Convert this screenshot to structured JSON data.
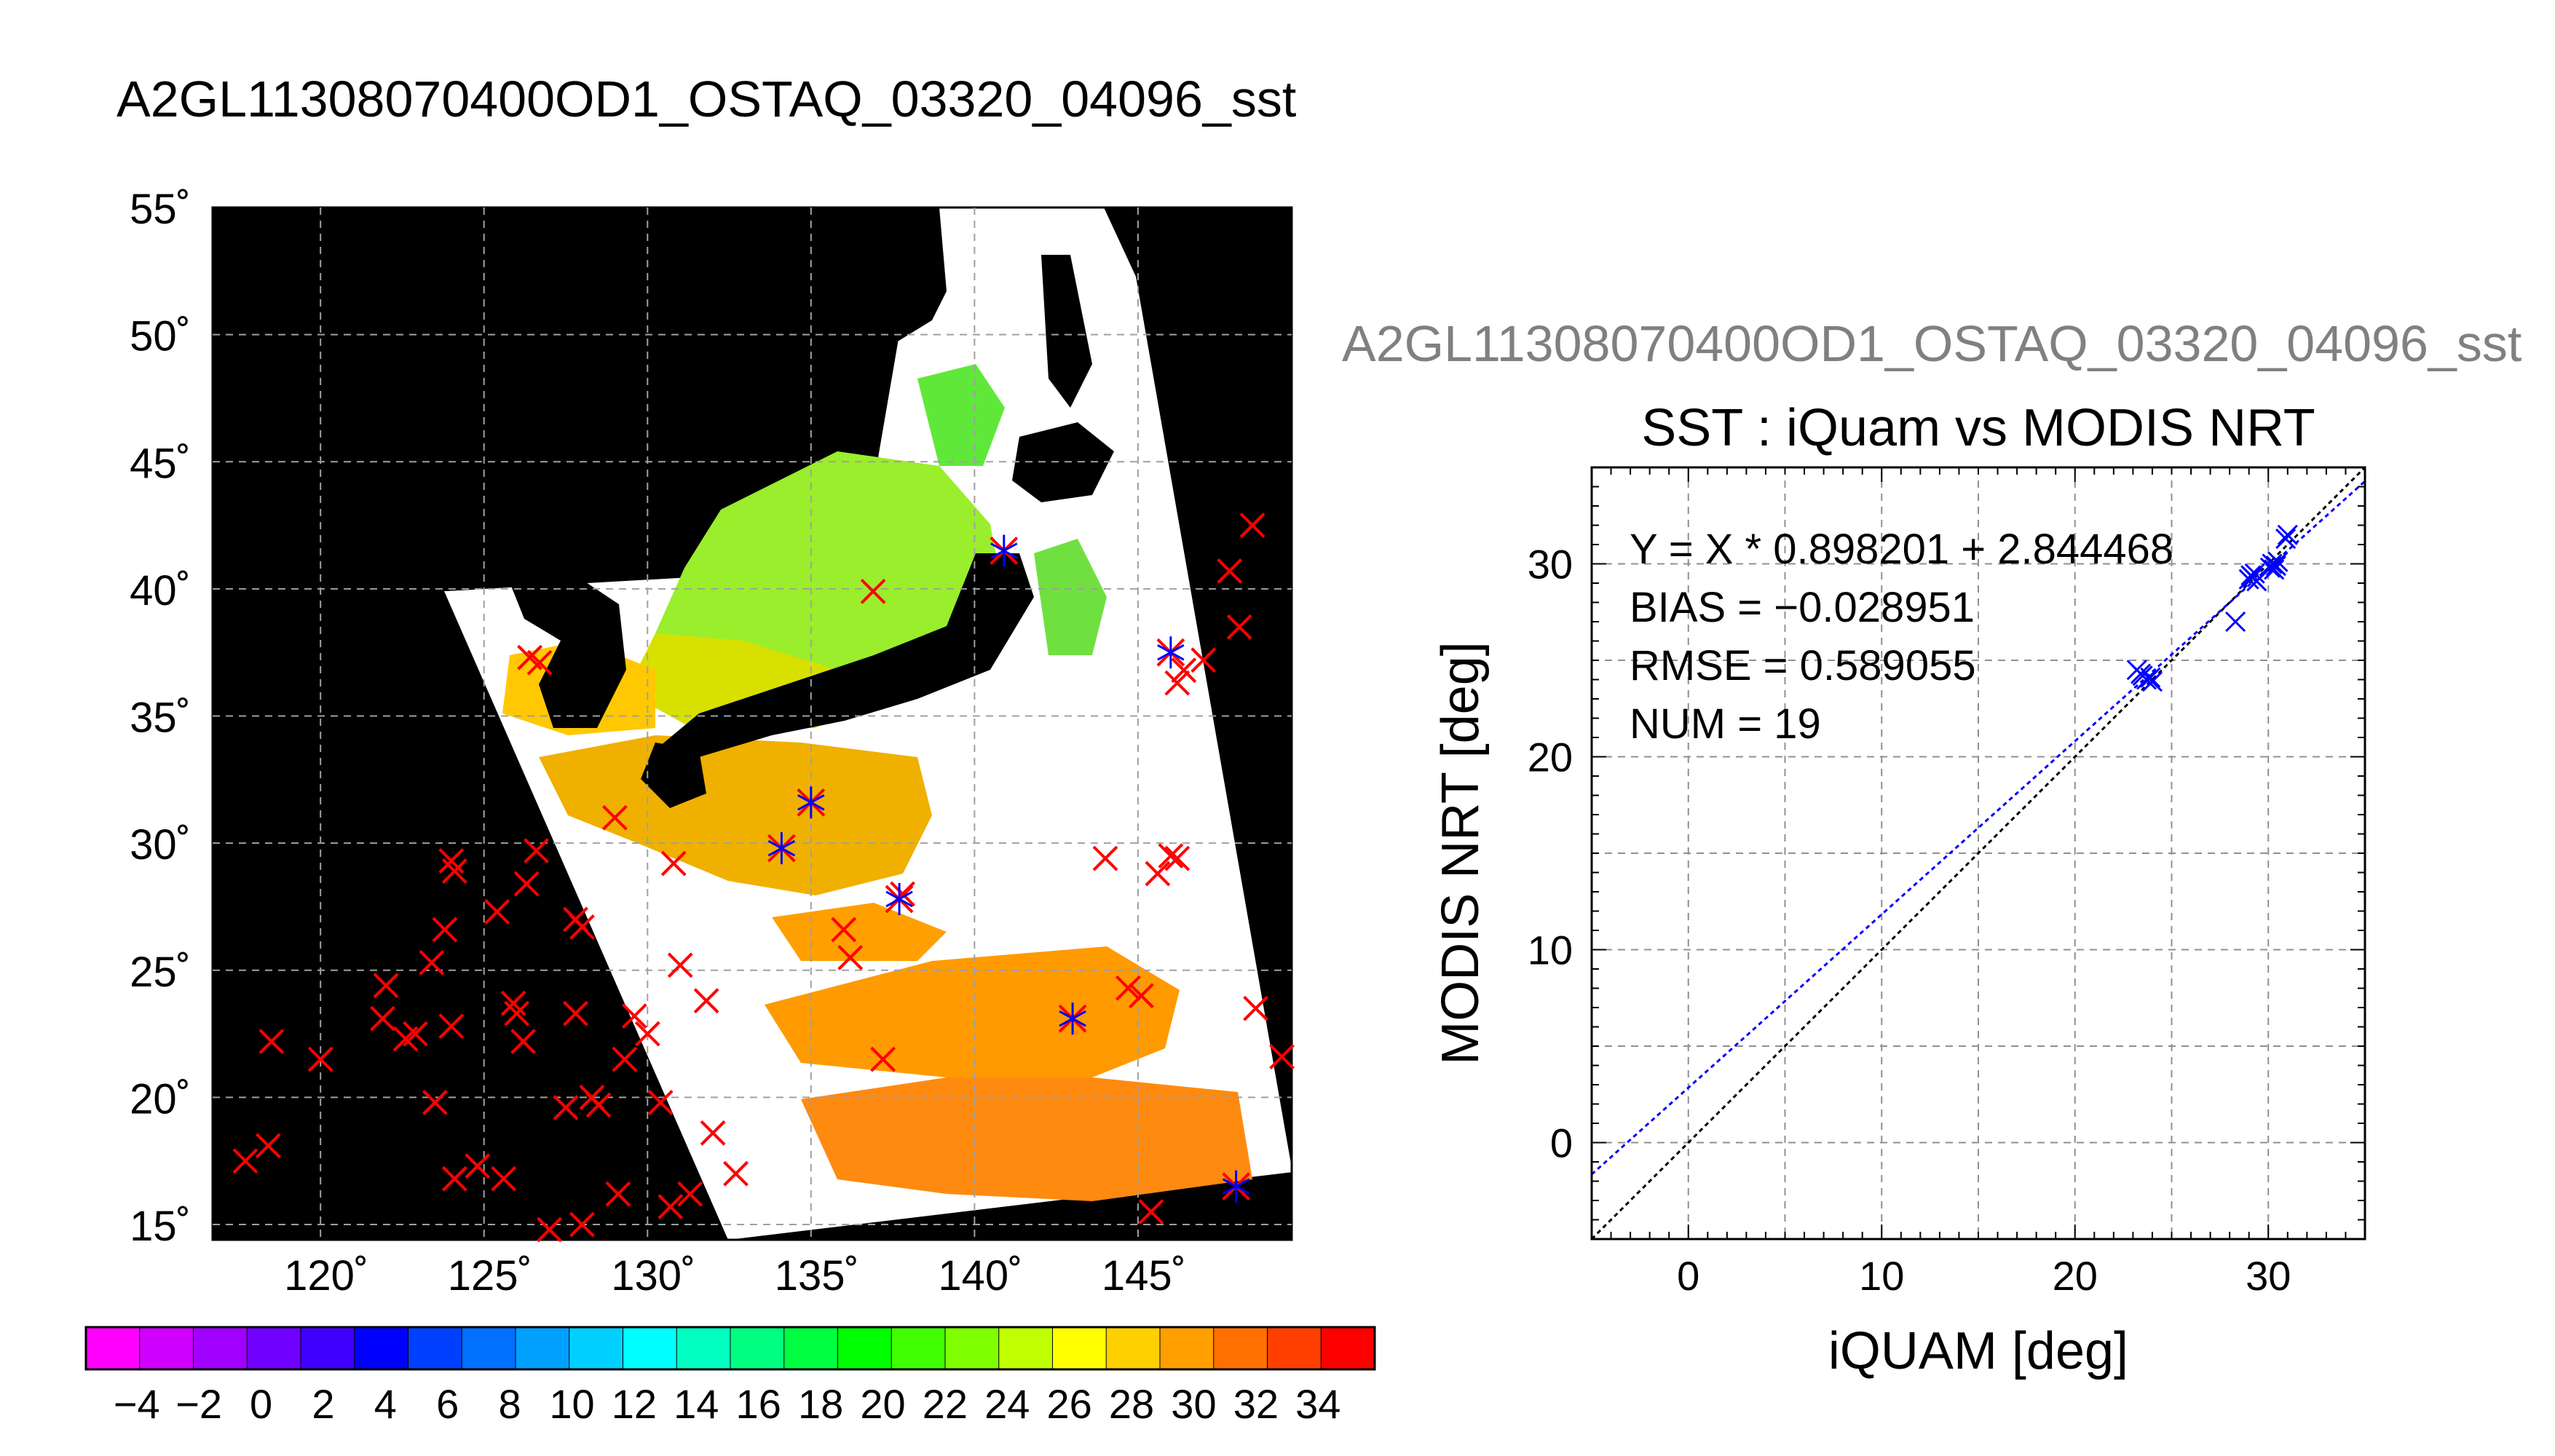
{
  "map_panel": {
    "title": "A2GL11308070400OD1_OSTAQ_03320_04096_sst",
    "lat_ticks": [
      55,
      50,
      45,
      40,
      35,
      30,
      25,
      20,
      15
    ],
    "lon_ticks": [
      120,
      125,
      130,
      135,
      140,
      145
    ],
    "lon_range": [
      116.7,
      149.7
    ],
    "lat_range": [
      14.4,
      55.0
    ],
    "colorbar_ticks": [
      -4,
      -2,
      0,
      2,
      4,
      6,
      8,
      10,
      12,
      14,
      16,
      18,
      20,
      22,
      24,
      26,
      28,
      30,
      32,
      34
    ],
    "colorbar_colors": [
      "#ff00ff",
      "#d000ff",
      "#a000ff",
      "#7000ff",
      "#4000ff",
      "#0000ff",
      "#0040ff",
      "#0070ff",
      "#00a0ff",
      "#00d0ff",
      "#00ffff",
      "#00ffc0",
      "#00ff80",
      "#00ff40",
      "#00ff00",
      "#40ff00",
      "#80ff00",
      "#c0ff00",
      "#ffff00",
      "#ffd000",
      "#ffa000",
      "#ff7000",
      "#ff4000",
      "#ff0000"
    ],
    "land_color": "#000000",
    "cloud_color": "#ffffff",
    "marker_colors": {
      "outside": "#ff0000",
      "matched": "#0000ff"
    }
  },
  "chart_data": {
    "type": "scatter",
    "title": "SST : iQuam vs MODIS NRT",
    "subtitle": "A2GL11308070400OD1_OSTAQ_03320_04096_sst",
    "xlabel": "iQUAM [deg]",
    "ylabel": "MODIS NRT [deg]",
    "xlim": [
      -5,
      35
    ],
    "ylim": [
      -5,
      35
    ],
    "xticks": [
      0,
      10,
      20,
      30
    ],
    "yticks": [
      0,
      10,
      20,
      30
    ],
    "grid": true,
    "stats": [
      "Y = X * 0.898201 + 2.844468",
      "BIAS = −0.028951",
      "RMSE = 0.589055",
      "NUM = 19"
    ],
    "regression": {
      "slope": 0.898201,
      "intercept": 2.844468,
      "color": "#0000ff"
    },
    "identity_line_color": "#000000",
    "marker_color": "#0000ff",
    "points": [
      {
        "x": 23.2,
        "y": 24.5
      },
      {
        "x": 23.5,
        "y": 24.2
      },
      {
        "x": 23.7,
        "y": 24.0
      },
      {
        "x": 23.9,
        "y": 24.1
      },
      {
        "x": 24.0,
        "y": 23.9
      },
      {
        "x": 28.3,
        "y": 27.0
      },
      {
        "x": 29.0,
        "y": 29.2
      },
      {
        "x": 29.1,
        "y": 29.4
      },
      {
        "x": 29.3,
        "y": 29.5
      },
      {
        "x": 29.4,
        "y": 29.1
      },
      {
        "x": 30.1,
        "y": 29.8
      },
      {
        "x": 30.2,
        "y": 30.0
      },
      {
        "x": 30.4,
        "y": 29.9
      },
      {
        "x": 30.5,
        "y": 30.1
      },
      {
        "x": 30.3,
        "y": 29.7
      },
      {
        "x": 30.9,
        "y": 31.3
      },
      {
        "x": 31.0,
        "y": 31.5
      },
      {
        "x": 23.4,
        "y": 24.3
      },
      {
        "x": 29.2,
        "y": 29.3
      }
    ]
  }
}
